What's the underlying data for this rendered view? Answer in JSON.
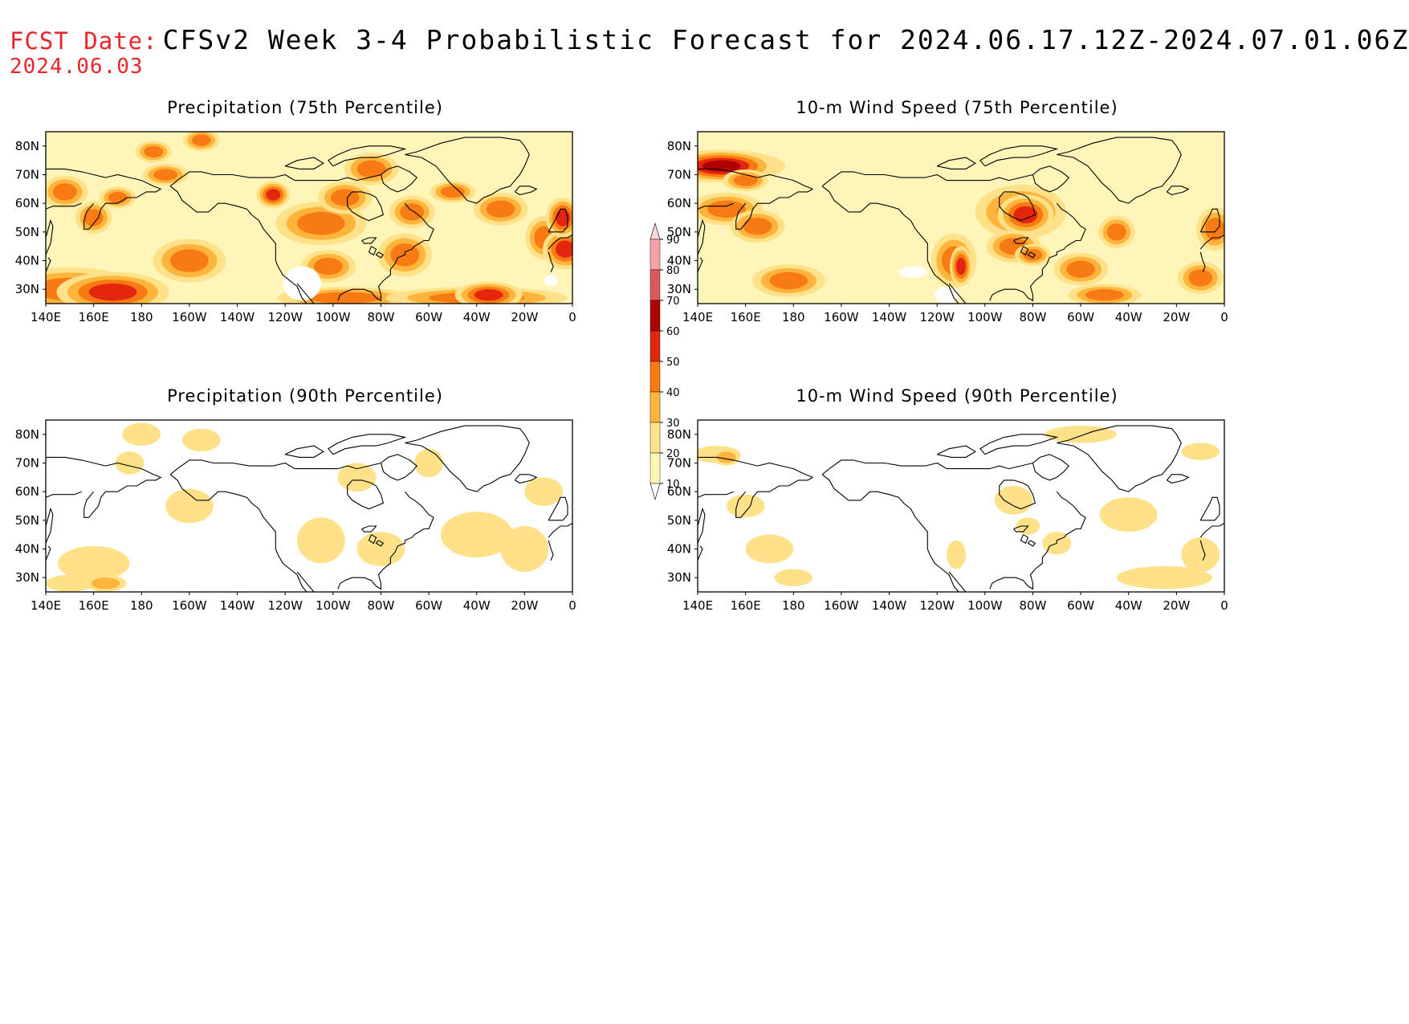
{
  "header": {
    "fcst_label": "FCST Date:",
    "title": "CFSv2 Week 3-4 Probabilistic Forecast for 2024.06.17.12Z-2024.07.01.06Z",
    "fcst_date": "2024.06.03"
  },
  "colorbar": {
    "levels": [
      "10",
      "20",
      "30",
      "40",
      "50",
      "60",
      "70",
      "80",
      "90"
    ],
    "colors": [
      "#fff5b8",
      "#ffe18a",
      "#ffb43c",
      "#f87a12",
      "#e4260e",
      "#b00000",
      "#d85a5a",
      "#f2a2a8",
      "#fcd8da"
    ]
  },
  "axes": {
    "lon_labels": [
      "140E",
      "160E",
      "180",
      "160W",
      "140W",
      "120W",
      "100W",
      "80W",
      "60W",
      "40W",
      "20W",
      "0"
    ],
    "lat_labels": [
      "80N",
      "70N",
      "60N",
      "50N",
      "40N",
      "30N"
    ],
    "lon_range": [
      140,
      360
    ],
    "lat_range": [
      25,
      85
    ]
  },
  "panels": [
    {
      "id": "precip75",
      "title": "Precipitation (75th Percentile)"
    },
    {
      "id": "wind75",
      "title": "10-m Wind Speed (75th Percentile)"
    },
    {
      "id": "precip90",
      "title": "Precipitation (90th Percentile)"
    },
    {
      "id": "wind90",
      "title": "10-m Wind Speed (90th Percentile)"
    }
  ]
}
